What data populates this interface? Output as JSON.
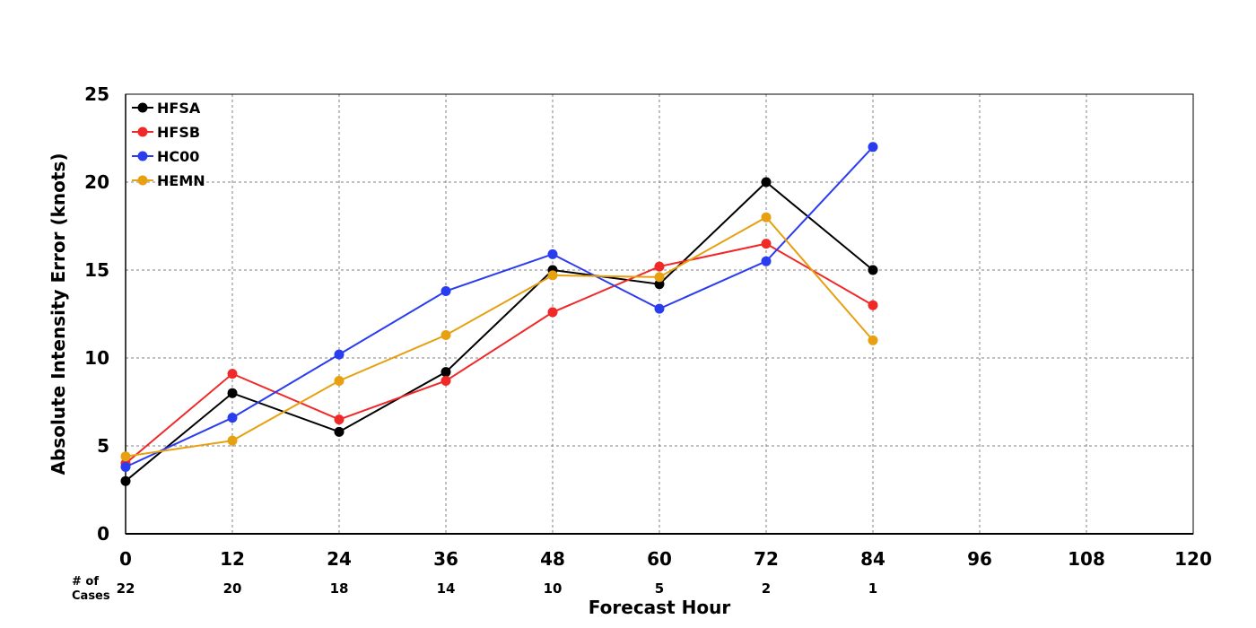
{
  "chart_data": {
    "type": "line",
    "title": "",
    "xlabel": "Forecast Hour",
    "ylabel": "Absolute Intensity Error (knots)",
    "x_ticks": [
      0,
      12,
      24,
      36,
      48,
      60,
      72,
      84,
      96,
      108,
      120
    ],
    "y_ticks": [
      0,
      5,
      10,
      15,
      20,
      25
    ],
    "xlim": [
      0,
      120
    ],
    "ylim": [
      0,
      25
    ],
    "grid": true,
    "legend_position": "top-left",
    "cases_label_line1": "# of",
    "cases_label_line2": "Cases",
    "cases_x": [
      0,
      12,
      24,
      36,
      48,
      60,
      72,
      84
    ],
    "cases": [
      22,
      20,
      18,
      14,
      10,
      5,
      2,
      1
    ],
    "x": [
      0,
      12,
      24,
      36,
      48,
      60,
      72,
      84
    ],
    "series": [
      {
        "name": "HFSA",
        "color": "#000000",
        "values": [
          3.0,
          8.0,
          5.8,
          9.2,
          15.0,
          14.2,
          20.0,
          15.0
        ]
      },
      {
        "name": "HFSB",
        "color": "#f02828",
        "values": [
          4.0,
          9.1,
          6.5,
          8.7,
          12.6,
          15.2,
          16.5,
          13.0
        ]
      },
      {
        "name": "HC00",
        "color": "#2a3cf0",
        "values": [
          3.8,
          6.6,
          10.2,
          13.8,
          15.9,
          12.8,
          15.5,
          22.0
        ]
      },
      {
        "name": "HEMN",
        "color": "#e6a010",
        "values": [
          4.4,
          5.3,
          8.7,
          11.3,
          14.7,
          14.6,
          18.0,
          11.0
        ]
      }
    ]
  }
}
